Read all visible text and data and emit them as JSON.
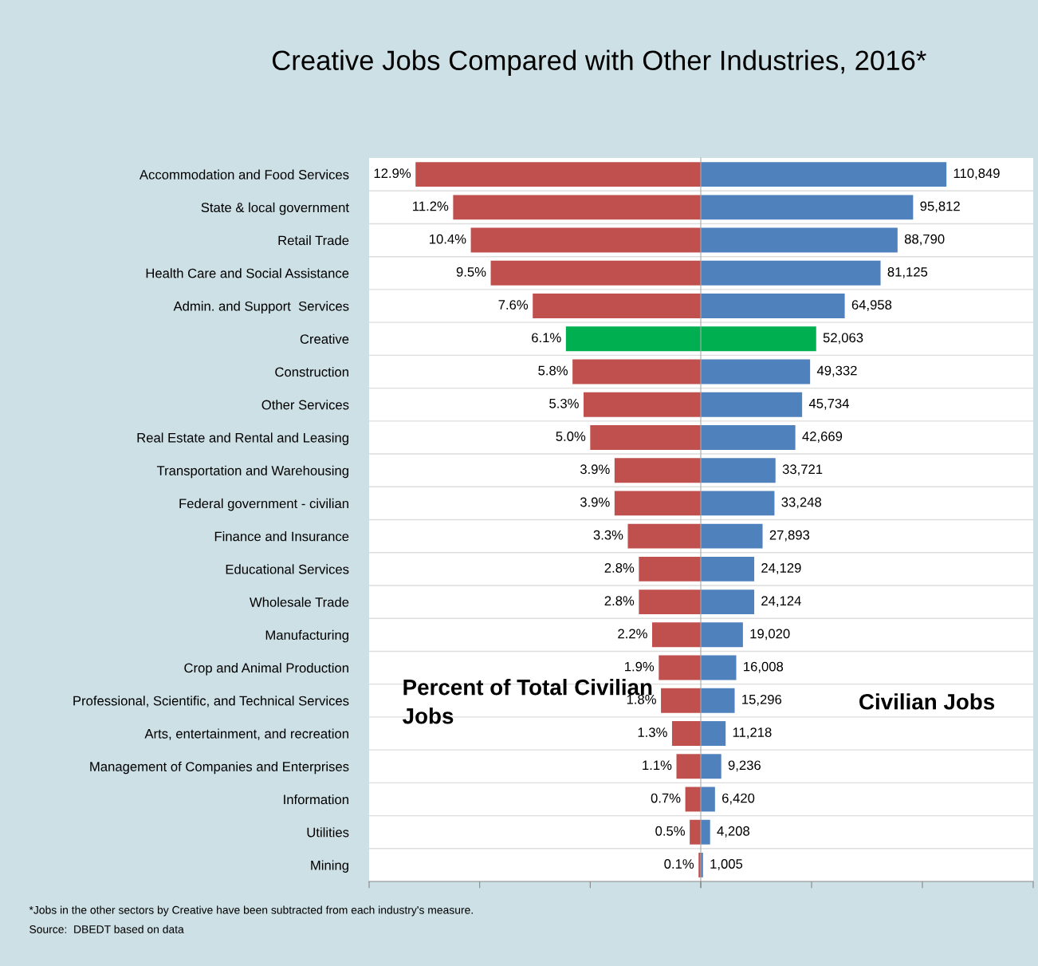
{
  "chart_data": [
    {
      "type": "bar",
      "orientation": "horizontal",
      "title": "Creative Jobs Compared with Other Industries, 2016*",
      "subtitle": "Percent of Total Civilian Jobs",
      "categories": [
        "Accommodation and Food Services",
        "State & local government",
        "Retail Trade",
        "Health Care and Social Assistance",
        "Admin. and Support  Services",
        "Creative",
        "Construction",
        "Other Services",
        "Real Estate and Rental and Leasing",
        "Transportation and Warehousing",
        "Federal government - civilian",
        "Finance and Insurance",
        "Educational Services",
        "Wholesale Trade",
        "Manufacturing",
        "Crop and Animal Production",
        "Professional, Scientific, and Technical Services",
        "Arts, entertainment, and recreation",
        "Management of Companies and Enterprises",
        "Information",
        "Utilities",
        "Mining"
      ],
      "values": [
        12.9,
        11.2,
        10.4,
        9.5,
        7.6,
        6.1,
        5.8,
        5.3,
        5.0,
        3.9,
        3.9,
        3.3,
        2.8,
        2.8,
        2.2,
        1.9,
        1.8,
        1.3,
        1.1,
        0.7,
        0.5,
        0.1
      ],
      "value_labels": [
        "12.9%",
        "11.2%",
        "10.4%",
        "9.5%",
        "7.6%",
        "6.1%",
        "5.8%",
        "5.3%",
        "5.0%",
        "3.9%",
        "3.9%",
        "3.3%",
        "2.8%",
        "2.8%",
        "2.2%",
        "1.9%",
        "1.8%",
        "1.3%",
        "1.1%",
        "0.7%",
        "0.5%",
        "0.1%"
      ],
      "colors": [
        "#c0504d",
        "#c0504d",
        "#c0504d",
        "#c0504d",
        "#c0504d",
        "#00b050",
        "#c0504d",
        "#c0504d",
        "#c0504d",
        "#c0504d",
        "#c0504d",
        "#c0504d",
        "#c0504d",
        "#c0504d",
        "#c0504d",
        "#c0504d",
        "#c0504d",
        "#c0504d",
        "#c0504d",
        "#c0504d",
        "#c0504d",
        "#c0504d"
      ],
      "xlim": [
        15,
        0
      ],
      "xticks": [
        {
          "value": 15,
          "label": null
        },
        {
          "value": 10,
          "label": null
        },
        {
          "value": 5,
          "label": null
        },
        {
          "value": 0,
          "label": null
        }
      ],
      "tick_labels": "y",
      "annotations": [
        "*Jobs in the other sectors by Creative have been subtracted from each industry's measure.",
        "Source:  DBEDT based on data"
      ]
    },
    {
      "type": "bar",
      "orientation": "horizontal",
      "subtitle": "Civilian Jobs",
      "categories": [
        null,
        null,
        null,
        null,
        null,
        null,
        null,
        null,
        null,
        null,
        null,
        null,
        null,
        null,
        null,
        null,
        null,
        null,
        null,
        null,
        null,
        null
      ],
      "values": [
        110849,
        95812,
        88790,
        81125,
        64958,
        52063,
        49332,
        45734,
        42669,
        33721,
        33248,
        27893,
        24129,
        24124,
        19020,
        16008,
        15296,
        11218,
        9236,
        6420,
        4208,
        1005
      ],
      "value_labels": [
        "110,849",
        "95,812",
        "88,790",
        "81,125",
        "64,958",
        "52,063",
        "49,332",
        "45,734",
        "42,669",
        "33,721",
        "33,248",
        "27,893",
        "24,129",
        "24,124",
        "19,020",
        "16,008",
        "15,296",
        "11,218",
        "9,236",
        "6,420",
        "4,208",
        "1,005"
      ],
      "colors": [
        "#4f81bd",
        "#4f81bd",
        "#4f81bd",
        "#4f81bd",
        "#4f81bd",
        "#00b050",
        "#4f81bd",
        "#4f81bd",
        "#4f81bd",
        "#4f81bd",
        "#4f81bd",
        "#4f81bd",
        "#4f81bd",
        "#4f81bd",
        "#4f81bd",
        "#4f81bd",
        "#4f81bd",
        "#4f81bd",
        "#4f81bd",
        "#4f81bd",
        "#4f81bd",
        "#4f81bd"
      ],
      "xlim": [
        0,
        150000
      ],
      "xticks": [
        {
          "value": 0,
          "label": null
        },
        {
          "value": 50000,
          "label": null
        },
        {
          "value": 100000,
          "label": null
        },
        {
          "value": 150000,
          "label": null
        }
      ],
      "tick_labels": false
    }
  ]
}
